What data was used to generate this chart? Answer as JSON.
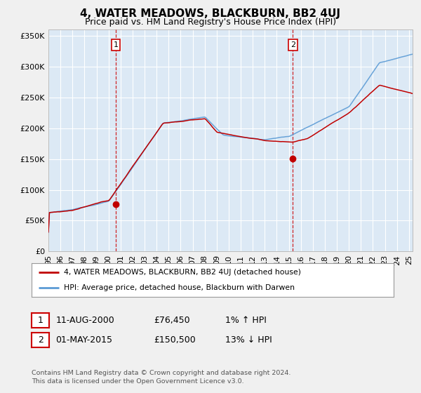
{
  "title": "4, WATER MEADOWS, BLACKBURN, BB2 4UJ",
  "subtitle": "Price paid vs. HM Land Registry's House Price Index (HPI)",
  "ylabel_ticks": [
    "£0",
    "£50K",
    "£100K",
    "£150K",
    "£200K",
    "£250K",
    "£300K",
    "£350K"
  ],
  "ytick_vals": [
    0,
    50000,
    100000,
    150000,
    200000,
    250000,
    300000,
    350000
  ],
  "ylim": [
    0,
    360000
  ],
  "xlim_start": 1995.0,
  "xlim_end": 2025.3,
  "bg_color": "#f0f0f0",
  "plot_bg_color": "#dce9f5",
  "grid_color": "#ffffff",
  "hpi_color": "#5b9bd5",
  "price_color": "#c00000",
  "purchase1": {
    "year": 2000.617,
    "price": 76450,
    "label": "1"
  },
  "purchase2": {
    "year": 2015.33,
    "price": 150500,
    "label": "2"
  },
  "legend_label1": "4, WATER MEADOWS, BLACKBURN, BB2 4UJ (detached house)",
  "legend_label2": "HPI: Average price, detached house, Blackburn with Darwen",
  "table_row1": [
    "1",
    "11-AUG-2000",
    "£76,450",
    "1% ↑ HPI"
  ],
  "table_row2": [
    "2",
    "01-MAY-2015",
    "£150,500",
    "13% ↓ HPI"
  ],
  "footer": "Contains HM Land Registry data © Crown copyright and database right 2024.\nThis data is licensed under the Open Government Licence v3.0.",
  "vline1_x": 2000.617,
  "vline2_x": 2015.33,
  "title_fontsize": 11,
  "subtitle_fontsize": 9,
  "tick_fontsize": 8,
  "xtick_years": [
    1995,
    1996,
    1997,
    1998,
    1999,
    2000,
    2001,
    2002,
    2003,
    2004,
    2005,
    2006,
    2007,
    2008,
    2009,
    2010,
    2011,
    2012,
    2013,
    2014,
    2015,
    2016,
    2017,
    2018,
    2019,
    2020,
    2021,
    2022,
    2023,
    2024,
    2025
  ],
  "xtick_labels": [
    "95",
    "96",
    "97",
    "98",
    "99",
    "00",
    "01",
    "02",
    "03",
    "04",
    "05",
    "06",
    "07",
    "08",
    "09",
    "10",
    "11",
    "12",
    "13",
    "14",
    "15",
    "16",
    "17",
    "18",
    "19",
    "20",
    "21",
    "22",
    "23",
    "24",
    "25"
  ]
}
